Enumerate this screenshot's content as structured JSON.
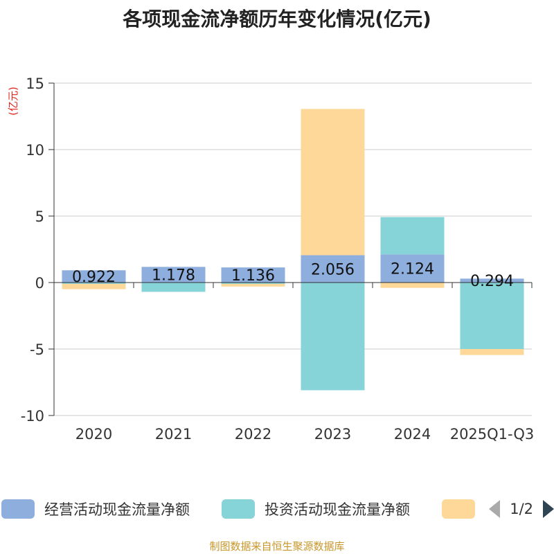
{
  "title": "各项现金流净额历年变化情况(亿元)",
  "source": "制图数据来自恒生聚源数据库",
  "legend": {
    "items": [
      {
        "label": "经营活动现金流量净额",
        "color": "#8eaedd"
      },
      {
        "label": "投资活动现金流量净额",
        "color": "#86d4d8"
      },
      {
        "label": "",
        "color": "#fdd898"
      }
    ],
    "page": "1/2"
  },
  "chart_data": {
    "type": "bar",
    "stacked": true,
    "title": "各项现金流净额历年变化情况(亿元)",
    "ylabel": "(亿元)",
    "ylim": [
      -10,
      15
    ],
    "yticks": [
      "15",
      "10",
      "5",
      "0",
      "-5",
      "-10"
    ],
    "ytick_values": [
      15,
      10,
      5,
      0,
      -5,
      -10
    ],
    "categories": [
      "2020",
      "2021",
      "2022",
      "2023",
      "2024",
      "2025Q1-Q3"
    ],
    "series": [
      {
        "name": "经营活动现金流量净额",
        "color": "#8eaedd",
        "values": [
          0.922,
          1.178,
          1.136,
          2.056,
          2.124,
          0.294
        ]
      },
      {
        "name": "投资活动现金流量净额",
        "color": "#86d4d8",
        "values": [
          -0.1,
          -0.7,
          -0.1,
          -8.1,
          2.8,
          -5.0
        ]
      },
      {
        "name": "",
        "color": "#fdd898",
        "values": [
          -0.4,
          0,
          -0.2,
          11.0,
          -0.4,
          -0.45
        ]
      }
    ],
    "data_labels": [
      "0.922",
      "1.178",
      "1.136",
      "2.056",
      "2.124",
      "0.294"
    ],
    "grid": true,
    "legend_position": "bottom"
  }
}
